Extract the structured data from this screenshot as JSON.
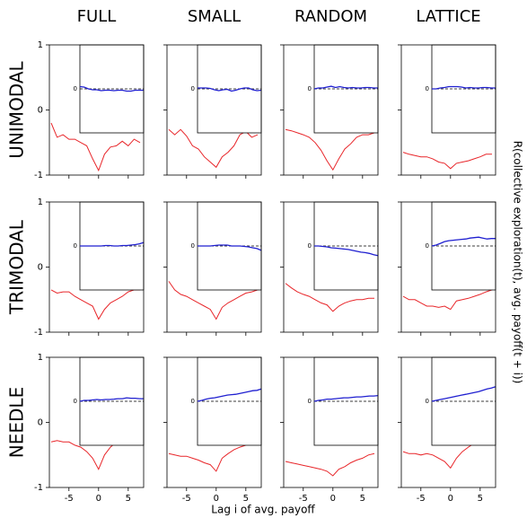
{
  "column_titles": [
    "FULL",
    "SMALL",
    "RANDOM",
    "LATTICE"
  ],
  "row_labels": [
    "UNIMODAL",
    "TRIMODAL",
    "NEEDLE"
  ],
  "x_label": "Lag i of avg. payoff",
  "y_label": "R(collective exploration(t), avg. payoff(t + i))",
  "chart_data": [
    {
      "type": "line",
      "x": [
        -8,
        -7,
        -6,
        -5,
        -4,
        -3,
        -2,
        -1,
        0,
        1,
        2,
        3,
        4,
        5,
        6,
        7
      ],
      "xlim": [
        -8.3,
        7.6
      ],
      "ylim": [
        -1,
        1
      ],
      "xticks": [
        -5,
        0,
        5
      ],
      "yticks": [
        -1,
        0,
        1
      ],
      "series": [
        {
          "color": "#e8262a",
          "values": [
            -0.2,
            -0.42,
            -0.38,
            -0.45,
            -0.45,
            -0.5,
            -0.55,
            -0.75,
            -0.93,
            -0.68,
            -0.57,
            -0.55,
            -0.48,
            -0.55,
            -0.45,
            -0.5
          ]
        }
      ],
      "inset": {
        "ylim": [
          -1,
          1
        ],
        "yticks": [
          0
        ],
        "series": [
          {
            "color": "#1f1fd0",
            "values": [
              0.05,
              0.04,
              0.0,
              -0.02,
              -0.02,
              -0.04,
              -0.03,
              -0.03,
              -0.04,
              -0.03,
              -0.03,
              -0.05,
              -0.05,
              -0.03,
              -0.03,
              -0.03
            ]
          }
        ]
      }
    },
    {
      "type": "line",
      "x": [
        -8,
        -7,
        -6,
        -5,
        -4,
        -3,
        -2,
        -1,
        0,
        1,
        2,
        3,
        4,
        5,
        6,
        7
      ],
      "xlim": [
        -8.3,
        7.6
      ],
      "ylim": [
        -1,
        1
      ],
      "xticks": [
        -5,
        0,
        5
      ],
      "yticks": [
        -1,
        0,
        1
      ],
      "series": [
        {
          "color": "#e8262a",
          "values": [
            -0.3,
            -0.38,
            -0.3,
            -0.4,
            -0.55,
            -0.6,
            -0.72,
            -0.8,
            -0.88,
            -0.72,
            -0.65,
            -0.55,
            -0.38,
            -0.33,
            -0.42,
            -0.38
          ]
        }
      ],
      "inset": {
        "ylim": [
          -1,
          1
        ],
        "yticks": [
          0
        ],
        "series": [
          {
            "color": "#1f1fd0",
            "values": [
              0.02,
              0.02,
              0.02,
              0.01,
              -0.02,
              -0.04,
              -0.02,
              -0.01,
              -0.05,
              -0.03,
              0.0,
              0.02,
              0.02,
              -0.02,
              -0.04,
              -0.03
            ]
          }
        ]
      }
    },
    {
      "type": "line",
      "x": [
        -8,
        -7,
        -6,
        -5,
        -4,
        -3,
        -2,
        -1,
        0,
        1,
        2,
        3,
        4,
        5,
        6,
        7
      ],
      "xlim": [
        -8.3,
        7.6
      ],
      "ylim": [
        -1,
        1
      ],
      "xticks": [
        -5,
        0,
        5
      ],
      "yticks": [
        -1,
        0,
        1
      ],
      "series": [
        {
          "color": "#e8262a",
          "values": [
            -0.3,
            -0.32,
            -0.35,
            -0.38,
            -0.42,
            -0.5,
            -0.62,
            -0.78,
            -0.92,
            -0.75,
            -0.6,
            -0.52,
            -0.42,
            -0.38,
            -0.38,
            -0.35
          ]
        }
      ],
      "inset": {
        "ylim": [
          -1,
          1
        ],
        "yticks": [
          0
        ],
        "series": [
          {
            "color": "#1f1fd0",
            "values": [
              0.0,
              0.02,
              0.02,
              0.04,
              0.06,
              0.03,
              0.05,
              0.03,
              0.02,
              0.03,
              0.02,
              0.02,
              0.03,
              0.03,
              0.02,
              0.02
            ]
          }
        ]
      }
    },
    {
      "type": "line",
      "x": [
        -8,
        -7,
        -6,
        -5,
        -4,
        -3,
        -2,
        -1,
        0,
        1,
        2,
        3,
        4,
        5,
        6,
        7
      ],
      "xlim": [
        -8.3,
        7.6
      ],
      "ylim": [
        -1,
        1
      ],
      "xticks": [
        -5,
        0,
        5
      ],
      "yticks": [
        -1,
        0,
        1
      ],
      "series": [
        {
          "color": "#e8262a",
          "values": [
            -0.65,
            -0.68,
            -0.7,
            -0.72,
            -0.72,
            -0.75,
            -0.8,
            -0.82,
            -0.9,
            -0.82,
            -0.8,
            -0.78,
            -0.75,
            -0.72,
            -0.68,
            -0.68
          ]
        }
      ],
      "inset": {
        "ylim": [
          -1,
          1
        ],
        "yticks": [
          0
        ],
        "series": [
          {
            "color": "#1f1fd0",
            "values": [
              0.0,
              0.0,
              0.02,
              0.03,
              0.05,
              0.05,
              0.05,
              0.04,
              0.02,
              0.03,
              0.02,
              0.02,
              0.03,
              0.03,
              0.02,
              0.02
            ]
          }
        ]
      }
    },
    {
      "type": "line",
      "x": [
        -8,
        -7,
        -6,
        -5,
        -4,
        -3,
        -2,
        -1,
        0,
        1,
        2,
        3,
        4,
        5,
        6,
        7
      ],
      "xlim": [
        -8.3,
        7.6
      ],
      "ylim": [
        -1,
        1
      ],
      "xticks": [
        -5,
        0,
        5
      ],
      "yticks": [
        -1,
        0,
        1
      ],
      "series": [
        {
          "color": "#e8262a",
          "values": [
            -0.35,
            -0.4,
            -0.38,
            -0.38,
            -0.45,
            -0.5,
            -0.55,
            -0.6,
            -0.8,
            -0.65,
            -0.55,
            -0.5,
            -0.45,
            -0.38,
            -0.35,
            -0.35
          ]
        }
      ],
      "inset": {
        "ylim": [
          -1,
          1
        ],
        "yticks": [
          0
        ],
        "series": [
          {
            "color": "#1f1fd0",
            "values": [
              0.0,
              0.0,
              0.0,
              0.0,
              0.0,
              0.0,
              0.01,
              0.01,
              0.0,
              0.0,
              0.01,
              0.01,
              0.02,
              0.03,
              0.05,
              0.08
            ]
          }
        ]
      }
    },
    {
      "type": "line",
      "x": [
        -8,
        -7,
        -6,
        -5,
        -4,
        -3,
        -2,
        -1,
        0,
        1,
        2,
        3,
        4,
        5,
        6,
        7
      ],
      "xlim": [
        -8.3,
        7.6
      ],
      "ylim": [
        -1,
        1
      ],
      "xticks": [
        -5,
        0,
        5
      ],
      "yticks": [
        -1,
        0,
        1
      ],
      "series": [
        {
          "color": "#e8262a",
          "values": [
            -0.22,
            -0.35,
            -0.42,
            -0.45,
            -0.5,
            -0.55,
            -0.6,
            -0.65,
            -0.8,
            -0.62,
            -0.55,
            -0.5,
            -0.45,
            -0.4,
            -0.38,
            -0.35
          ]
        }
      ],
      "inset": {
        "ylim": [
          -1,
          1
        ],
        "yticks": [
          0
        ],
        "series": [
          {
            "color": "#1f1fd0",
            "values": [
              0.0,
              0.0,
              0.0,
              0.0,
              0.01,
              0.02,
              0.02,
              0.02,
              0.0,
              0.0,
              0.0,
              -0.01,
              -0.02,
              -0.04,
              -0.06,
              -0.1
            ]
          }
        ]
      }
    },
    {
      "type": "line",
      "x": [
        -8,
        -7,
        -6,
        -5,
        -4,
        -3,
        -2,
        -1,
        0,
        1,
        2,
        3,
        4,
        5,
        6,
        7
      ],
      "xlim": [
        -8.3,
        7.6
      ],
      "ylim": [
        -1,
        1
      ],
      "xticks": [
        -5,
        0,
        5
      ],
      "yticks": [
        -1,
        0,
        1
      ],
      "series": [
        {
          "color": "#e8262a",
          "values": [
            -0.25,
            -0.32,
            -0.38,
            -0.42,
            -0.45,
            -0.5,
            -0.55,
            -0.58,
            -0.68,
            -0.6,
            -0.55,
            -0.52,
            -0.5,
            -0.5,
            -0.48,
            -0.48
          ]
        }
      ],
      "inset": {
        "ylim": [
          -1,
          1
        ],
        "yticks": [
          0
        ],
        "series": [
          {
            "color": "#1f1fd0",
            "values": [
              0.0,
              0.0,
              -0.01,
              -0.02,
              -0.04,
              -0.05,
              -0.06,
              -0.07,
              -0.08,
              -0.1,
              -0.12,
              -0.14,
              -0.15,
              -0.17,
              -0.2,
              -0.22
            ]
          }
        ]
      }
    },
    {
      "type": "line",
      "x": [
        -8,
        -7,
        -6,
        -5,
        -4,
        -3,
        -2,
        -1,
        0,
        1,
        2,
        3,
        4,
        5,
        6,
        7
      ],
      "xlim": [
        -8.3,
        7.6
      ],
      "ylim": [
        -1,
        1
      ],
      "xticks": [
        -5,
        0,
        5
      ],
      "yticks": [
        -1,
        0,
        1
      ],
      "series": [
        {
          "color": "#e8262a",
          "values": [
            -0.45,
            -0.5,
            -0.5,
            -0.55,
            -0.6,
            -0.6,
            -0.62,
            -0.6,
            -0.65,
            -0.52,
            -0.5,
            -0.48,
            -0.45,
            -0.42,
            -0.38,
            -0.35
          ]
        }
      ],
      "inset": {
        "ylim": [
          -1,
          1
        ],
        "yticks": [
          0
        ],
        "series": [
          {
            "color": "#1f1fd0",
            "values": [
              0.0,
              0.02,
              0.06,
              0.1,
              0.12,
              0.13,
              0.14,
              0.15,
              0.16,
              0.18,
              0.19,
              0.2,
              0.18,
              0.16,
              0.17,
              0.17
            ]
          }
        ]
      }
    },
    {
      "type": "line",
      "x": [
        -8,
        -7,
        -6,
        -5,
        -4,
        -3,
        -2,
        -1,
        0,
        1,
        2,
        3,
        4,
        5,
        6,
        7
      ],
      "xlim": [
        -8.3,
        7.6
      ],
      "ylim": [
        -1,
        1
      ],
      "xticks": [
        -5,
        0,
        5
      ],
      "yticks": [
        -1,
        0,
        1
      ],
      "series": [
        {
          "color": "#e8262a",
          "values": [
            -0.3,
            -0.28,
            -0.3,
            -0.3,
            -0.35,
            -0.38,
            -0.45,
            -0.55,
            -0.72,
            -0.5,
            -0.38,
            -0.3,
            -0.28,
            -0.25,
            -0.25,
            -0.25
          ]
        }
      ],
      "inset": {
        "ylim": [
          -1,
          1
        ],
        "yticks": [
          0
        ],
        "series": [
          {
            "color": "#1f1fd0",
            "values": [
              0.0,
              0.02,
              0.02,
              0.03,
              0.04,
              0.03,
              0.04,
              0.04,
              0.05,
              0.06,
              0.06,
              0.08,
              0.07,
              0.07,
              0.06,
              0.06
            ]
          }
        ]
      }
    },
    {
      "type": "line",
      "x": [
        -8,
        -7,
        -6,
        -5,
        -4,
        -3,
        -2,
        -1,
        0,
        1,
        2,
        3,
        4,
        5,
        6,
        7
      ],
      "xlim": [
        -8.3,
        7.6
      ],
      "ylim": [
        -1,
        1
      ],
      "xticks": [
        -5,
        0,
        5
      ],
      "yticks": [
        -1,
        0,
        1
      ],
      "series": [
        {
          "color": "#e8262a",
          "values": [
            -0.48,
            -0.5,
            -0.52,
            -0.52,
            -0.55,
            -0.58,
            -0.62,
            -0.65,
            -0.75,
            -0.55,
            -0.48,
            -0.42,
            -0.38,
            -0.35,
            -0.3,
            -0.28
          ]
        }
      ],
      "inset": {
        "ylim": [
          -1,
          1
        ],
        "yticks": [
          0
        ],
        "series": [
          {
            "color": "#1f1fd0",
            "values": [
              0.0,
              0.02,
              0.05,
              0.07,
              0.08,
              0.1,
              0.12,
              0.14,
              0.15,
              0.16,
              0.18,
              0.2,
              0.22,
              0.24,
              0.25,
              0.28
            ]
          }
        ]
      }
    },
    {
      "type": "line",
      "x": [
        -8,
        -7,
        -6,
        -5,
        -4,
        -3,
        -2,
        -1,
        0,
        1,
        2,
        3,
        4,
        5,
        6,
        7
      ],
      "xlim": [
        -8.3,
        7.6
      ],
      "ylim": [
        -1,
        1
      ],
      "xticks": [
        -5,
        0,
        5
      ],
      "yticks": [
        -1,
        0,
        1
      ],
      "series": [
        {
          "color": "#e8262a",
          "values": [
            -0.6,
            -0.62,
            -0.64,
            -0.66,
            -0.68,
            -0.7,
            -0.72,
            -0.75,
            -0.82,
            -0.72,
            -0.68,
            -0.62,
            -0.58,
            -0.55,
            -0.5,
            -0.48
          ]
        }
      ],
      "inset": {
        "ylim": [
          -1,
          1
        ],
        "yticks": [
          0
        ],
        "series": [
          {
            "color": "#1f1fd0",
            "values": [
              0.0,
              0.02,
              0.03,
              0.05,
              0.05,
              0.06,
              0.07,
              0.08,
              0.08,
              0.09,
              0.1,
              0.1,
              0.11,
              0.12,
              0.12,
              0.13
            ]
          }
        ]
      }
    },
    {
      "type": "line",
      "x": [
        -8,
        -7,
        -6,
        -5,
        -4,
        -3,
        -2,
        -1,
        0,
        1,
        2,
        3,
        4,
        5,
        6,
        7
      ],
      "xlim": [
        -8.3,
        7.6
      ],
      "ylim": [
        -1,
        1
      ],
      "xticks": [
        -5,
        0,
        5
      ],
      "yticks": [
        -1,
        0,
        1
      ],
      "series": [
        {
          "color": "#e8262a",
          "values": [
            -0.45,
            -0.48,
            -0.48,
            -0.5,
            -0.48,
            -0.5,
            -0.55,
            -0.6,
            -0.7,
            -0.55,
            -0.45,
            -0.38,
            -0.32,
            -0.28,
            -0.25,
            -0.22
          ]
        }
      ],
      "inset": {
        "ylim": [
          -1,
          1
        ],
        "yticks": [
          0
        ],
        "series": [
          {
            "color": "#1f1fd0",
            "values": [
              0.0,
              0.02,
              0.04,
              0.06,
              0.08,
              0.1,
              0.12,
              0.14,
              0.16,
              0.18,
              0.2,
              0.22,
              0.25,
              0.28,
              0.3,
              0.33
            ]
          }
        ]
      }
    }
  ]
}
